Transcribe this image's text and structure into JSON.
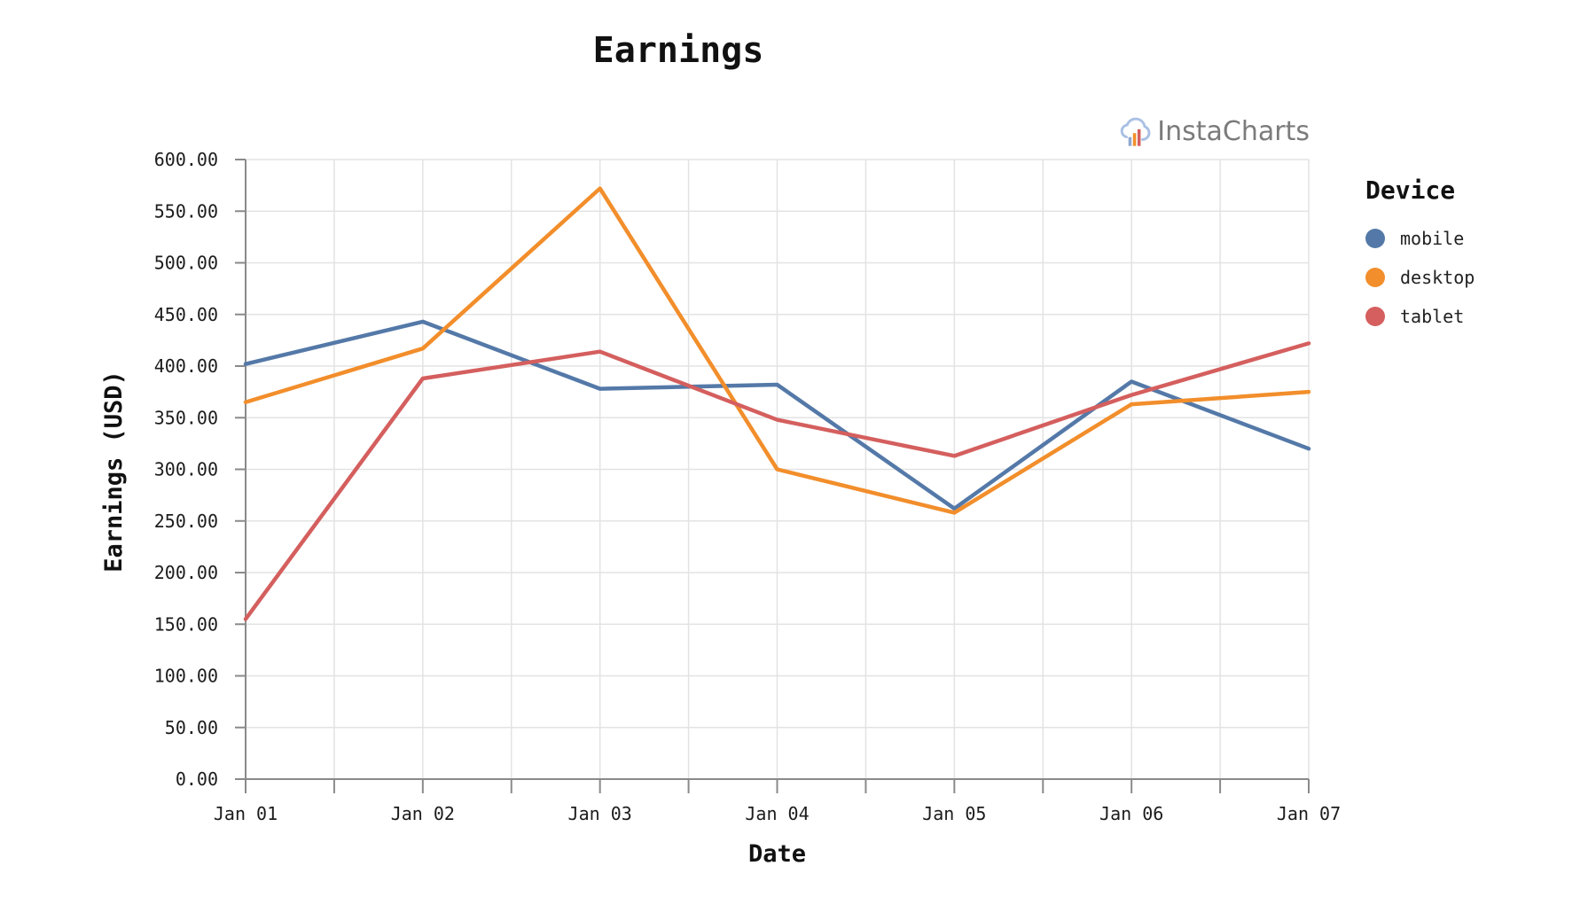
{
  "page_title": "Earnings",
  "watermark_text": "InstaCharts",
  "chart_data": {
    "type": "line",
    "title": "Earnings",
    "xlabel": "Date",
    "ylabel": "Earnings (USD)",
    "x": [
      "Jan 01",
      "Jan 02",
      "Jan 03",
      "Jan 04",
      "Jan 05",
      "Jan 06",
      "Jan 07"
    ],
    "series": [
      {
        "name": "mobile",
        "color": "#5479a8",
        "values": [
          402,
          443,
          378,
          382,
          262,
          385,
          320
        ]
      },
      {
        "name": "desktop",
        "color": "#f28e2b",
        "values": [
          365,
          417,
          572,
          300,
          258,
          363,
          375
        ]
      },
      {
        "name": "tablet",
        "color": "#d45f5e",
        "values": [
          155,
          388,
          414,
          348,
          313,
          372,
          422
        ]
      }
    ],
    "ylim": [
      0,
      600
    ],
    "ytick_step": 50,
    "ytick_decimals": 2,
    "grid": true,
    "legend_title": "Device",
    "legend_position": "right",
    "colors": {
      "axis": "#8a8a8a",
      "grid": "#e3e3e3",
      "text": "#1c1c1c",
      "watermark": "#7b7b7b"
    }
  }
}
